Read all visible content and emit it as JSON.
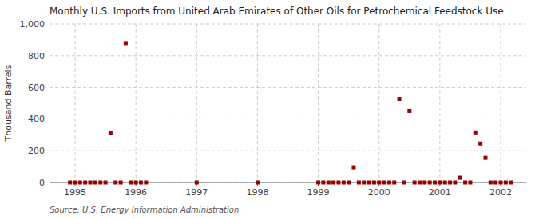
{
  "chart_data": {
    "type": "scatter",
    "title": "Monthly U.S. Imports from United Arab Emirates of Other Oils for Petrochemical Feedstock Use",
    "y_label": "Thousand Barrels",
    "annotations": [
      "Source: U.S. Energy Information Administration"
    ],
    "color": "#990000",
    "marker": "square",
    "grid": true,
    "xlim": [
      1994.58,
      2002.42
    ],
    "xticks": [
      1995,
      1996,
      1997,
      1998,
      1999,
      2000,
      2001,
      2002
    ],
    "ylim": [
      0,
      1000
    ],
    "yticks": [
      0,
      200,
      400,
      600,
      800,
      {
        "value": 1000,
        "label": "1,000"
      }
    ],
    "x": [
      1994.917,
      1995.0,
      1995.083,
      1995.167,
      1995.25,
      1995.333,
      1995.417,
      1995.5,
      1995.583,
      1995.667,
      1995.75,
      1995.833,
      1995.917,
      1996.0,
      1996.083,
      1996.167,
      1997.0,
      1998.0,
      1999.0,
      1999.083,
      1999.167,
      1999.25,
      1999.333,
      1999.417,
      1999.5,
      1999.583,
      1999.667,
      1999.75,
      1999.833,
      1999.917,
      2000.0,
      2000.083,
      2000.167,
      2000.25,
      2000.333,
      2000.417,
      2000.5,
      2000.583,
      2000.667,
      2000.75,
      2000.833,
      2000.917,
      2001.0,
      2001.083,
      2001.167,
      2001.25,
      2001.333,
      2001.417,
      2001.5,
      2001.583,
      2001.667,
      2001.75,
      2001.833,
      2001.917,
      2002.0,
      2002.083,
      2002.167
    ],
    "values": [
      0,
      0,
      0,
      0,
      0,
      0,
      0,
      0,
      313,
      0,
      0,
      875,
      0,
      0,
      0,
      0,
      0,
      0,
      0,
      0,
      0,
      0,
      0,
      0,
      0,
      95,
      0,
      0,
      0,
      0,
      0,
      0,
      0,
      0,
      525,
      0,
      450,
      0,
      0,
      0,
      0,
      0,
      0,
      0,
      0,
      0,
      30,
      0,
      0,
      315,
      245,
      155,
      0,
      0,
      0,
      0,
      0
    ]
  }
}
